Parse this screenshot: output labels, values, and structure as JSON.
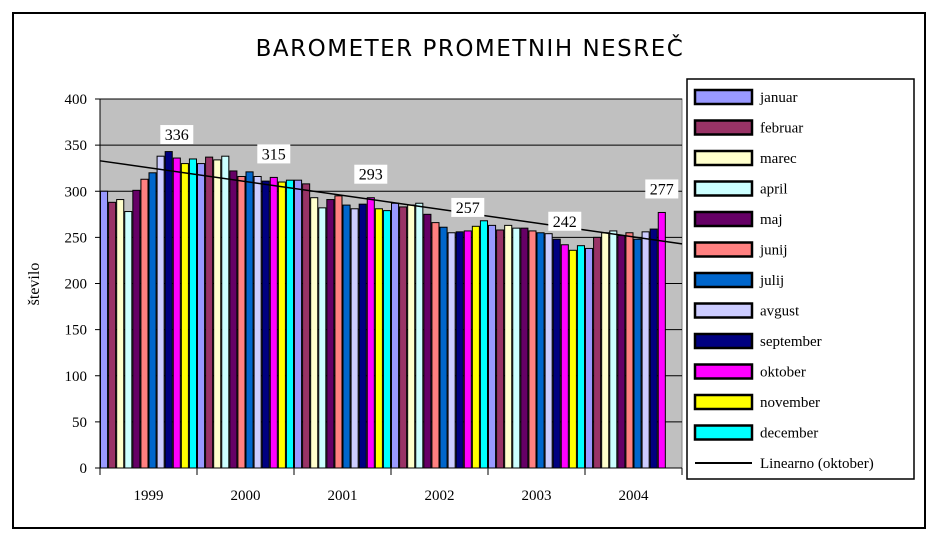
{
  "chart_data": {
    "type": "bar",
    "title": "BAROMETER PROMETNIH NESREČ",
    "xlabel": "",
    "ylabel": "število",
    "ylim": [
      0,
      400
    ],
    "yticks": [
      0,
      50,
      100,
      150,
      200,
      250,
      300,
      350,
      400
    ],
    "grid": true,
    "legend_position": "right",
    "categories": [
      "1999",
      "2000",
      "2001",
      "2002",
      "2003",
      "2004"
    ],
    "series": [
      {
        "name": "januar",
        "color": "#9999FF",
        "values": [
          300,
          330,
          312,
          287,
          263,
          238
        ]
      },
      {
        "name": "februar",
        "color": "#993366",
        "values": [
          288,
          337,
          308,
          283,
          258,
          250
        ]
      },
      {
        "name": "marec",
        "color": "#FFFFCC",
        "values": [
          291,
          334,
          293,
          285,
          263,
          255
        ]
      },
      {
        "name": "april",
        "color": "#CCFFFF",
        "values": [
          278,
          338,
          282,
          287,
          260,
          257
        ]
      },
      {
        "name": "maj",
        "color": "#660066",
        "values": [
          301,
          322,
          291,
          275,
          260,
          252
        ]
      },
      {
        "name": "junij",
        "color": "#FF8080",
        "values": [
          313,
          316,
          295,
          266,
          257,
          255
        ]
      },
      {
        "name": "julij",
        "color": "#0066CC",
        "values": [
          320,
          321,
          285,
          261,
          255,
          248
        ]
      },
      {
        "name": "avgust",
        "color": "#CCCCFF",
        "values": [
          338,
          316,
          281,
          255,
          254,
          256
        ]
      },
      {
        "name": "september",
        "color": "#000080",
        "values": [
          343,
          311,
          286,
          256,
          248,
          259
        ]
      },
      {
        "name": "oktober",
        "color": "#FF00FF",
        "values": [
          336,
          315,
          293,
          257,
          242,
          277
        ]
      },
      {
        "name": "november",
        "color": "#FFFF00",
        "values": [
          330,
          310,
          281,
          262,
          236,
          null
        ]
      },
      {
        "name": "december",
        "color": "#00FFFF",
        "values": [
          335,
          312,
          279,
          268,
          241,
          null
        ]
      }
    ],
    "data_labels": {
      "series": "oktober",
      "values": [
        "336",
        "315",
        "293",
        "257",
        "242",
        "277"
      ]
    },
    "trendline": {
      "name": "Linearno (oktober)",
      "color": "#000000",
      "start": 333,
      "end": 243
    },
    "plot_bg": "#C0C0C0"
  }
}
